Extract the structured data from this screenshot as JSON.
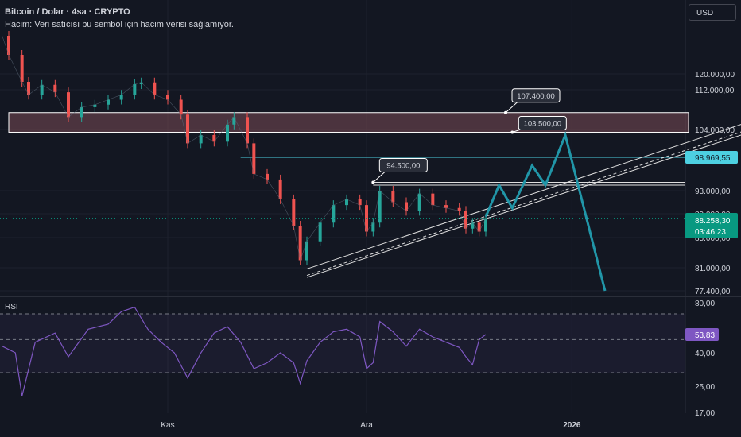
{
  "header": {
    "title": "Bitcoin / Dolar · 4sa · CRYPTO",
    "subtitle": "Hacim: Veri satıcısı bu sembol için hacim verisi sağlamıyor."
  },
  "currency_button": "USD",
  "rsi_pane_label": "RSI",
  "x_labels": [
    {
      "text": "Kas",
      "date": "2025-11-01",
      "bold": false
    },
    {
      "text": "Ara",
      "date": "2025-12-01",
      "bold": false
    },
    {
      "text": "2026",
      "date": "2026-01-01",
      "bold": true
    }
  ],
  "price_ticks": [
    "120.000,00",
    "112.000,00",
    "104.000,00",
    "93.000,00",
    "89.000,00",
    "85.000,00",
    "81.000,00",
    "77.400,00"
  ],
  "price_tick_values": [
    120000,
    112000,
    104000,
    93000,
    89000,
    85000,
    81000,
    77400
  ],
  "rsi_ticks": [
    "80,00",
    "40,00",
    "25,00",
    "17,00"
  ],
  "rsi_tick_values": [
    80,
    40,
    25,
    17
  ],
  "badges": {
    "level": {
      "text": "98.969,55",
      "value": 98969.55
    },
    "current_price": "88.258,30",
    "countdown": "03:46:23",
    "rsi": {
      "text": "53,83",
      "value": 53.83
    }
  },
  "callouts": [
    {
      "text": "107.400,00",
      "value": 107400,
      "date": "2025-12-22"
    },
    {
      "text": "103.500,00",
      "value": 103500,
      "date": "2025-12-23"
    },
    {
      "text": "94.500,00",
      "value": 94500,
      "date": "2025-12-02"
    }
  ],
  "colors": {
    "background": "#131722",
    "text": "#d1d4dc",
    "grid": "#1e222d",
    "candle_up": "#26a69a",
    "candle_down": "#ef5350",
    "rsi_line": "#7e57c2",
    "projection": "#2196a8",
    "level_badge": "#4dd0e1",
    "price_badge": "#089981",
    "rsi_badge": "#7e57c2",
    "zone_fill": "#7a4a55"
  },
  "chart_data": {
    "type": "line",
    "title": "Bitcoin / Dolar · 4sa · CRYPTO",
    "xlabel": "",
    "ylabel": "",
    "x_range": [
      "2025-10-07",
      "2026-01-31"
    ],
    "ylim": [
      77400,
      124000
    ],
    "grid": true,
    "series": [
      {
        "name": "",
        "values": [
          [
            "2025-10-07",
            124000
          ],
          [
            "2025-10-08",
            122000
          ],
          [
            "2025-10-10",
            116000
          ],
          [
            "2025-10-11",
            111000
          ],
          [
            "2025-10-13",
            114500
          ],
          [
            "2025-10-15",
            111500
          ],
          [
            "2025-10-17",
            106500
          ],
          [
            "2025-10-19",
            108500
          ],
          [
            "2025-10-21",
            109000
          ],
          [
            "2025-10-23",
            110000
          ],
          [
            "2025-10-25",
            111000
          ],
          [
            "2025-10-27",
            114800
          ],
          [
            "2025-10-28",
            115700
          ],
          [
            "2025-10-30",
            111000
          ],
          [
            "2025-11-01",
            110000
          ],
          [
            "2025-11-03",
            107000
          ],
          [
            "2025-11-04",
            101500
          ],
          [
            "2025-11-06",
            103000
          ],
          [
            "2025-11-08",
            101800
          ],
          [
            "2025-11-10",
            105000
          ],
          [
            "2025-11-11",
            106500
          ],
          [
            "2025-11-13",
            101500
          ],
          [
            "2025-11-14",
            96000
          ],
          [
            "2025-11-16",
            95000
          ],
          [
            "2025-11-18",
            91500
          ],
          [
            "2025-11-20",
            87000
          ],
          [
            "2025-11-21",
            82000
          ],
          [
            "2025-11-22",
            84500
          ],
          [
            "2025-11-24",
            87500
          ],
          [
            "2025-11-26",
            90500
          ],
          [
            "2025-11-28",
            91500
          ],
          [
            "2025-11-30",
            90500
          ],
          [
            "2025-12-01",
            86000
          ],
          [
            "2025-12-02",
            87500
          ],
          [
            "2025-12-03",
            93000
          ],
          [
            "2025-12-05",
            91000
          ],
          [
            "2025-12-07",
            89500
          ],
          [
            "2025-12-09",
            92500
          ],
          [
            "2025-12-11",
            90500
          ],
          [
            "2025-12-13",
            90000
          ],
          [
            "2025-12-15",
            89500
          ],
          [
            "2025-12-16",
            86500
          ],
          [
            "2025-12-17",
            87500
          ],
          [
            "2025-12-18",
            86000
          ],
          [
            "2025-12-19",
            88258.3
          ]
        ]
      }
    ],
    "horizontal_levels": [
      {
        "value": 98969.55,
        "from": "2025-11-12"
      },
      {
        "value": 94500,
        "from": "2025-12-02",
        "to": "2026-01-31"
      },
      {
        "value": 94000,
        "from": "2025-12-02",
        "to": "2026-01-31"
      }
    ],
    "zone": {
      "from_value": 103500,
      "to_value": 107400,
      "from_date": "2025-10-08",
      "to_date": "2026-01-31"
    },
    "channel": {
      "lower": [
        [
          "2025-11-22",
          79500
        ],
        [
          "2026-01-31",
          99000
        ]
      ],
      "upper": [
        [
          "2025-11-22",
          80200
        ],
        [
          "2026-01-31",
          99800
        ]
      ]
    },
    "projection": [
      [
        "2025-12-19",
        88500
      ],
      [
        "2025-12-21",
        94000
      ],
      [
        "2025-12-23",
        90000
      ],
      [
        "2025-12-26",
        97500
      ],
      [
        "2025-12-28",
        94000
      ],
      [
        "2025-12-31",
        103000
      ],
      [
        "2026-01-06",
        77400
      ]
    ],
    "rsi": {
      "ylim": [
        15,
        80
      ],
      "levels": [
        70,
        50,
        30
      ],
      "values": [
        [
          "2025-10-07",
          45
        ],
        [
          "2025-10-09",
          40
        ],
        [
          "2025-10-10",
          22
        ],
        [
          "2025-10-12",
          48
        ],
        [
          "2025-10-15",
          55
        ],
        [
          "2025-10-17",
          38
        ],
        [
          "2025-10-20",
          58
        ],
        [
          "2025-10-23",
          62
        ],
        [
          "2025-10-25",
          72
        ],
        [
          "2025-10-27",
          76
        ],
        [
          "2025-10-29",
          58
        ],
        [
          "2025-10-31",
          48
        ],
        [
          "2025-11-02",
          40
        ],
        [
          "2025-11-04",
          28
        ],
        [
          "2025-11-06",
          40
        ],
        [
          "2025-11-08",
          55
        ],
        [
          "2025-11-10",
          60
        ],
        [
          "2025-11-12",
          48
        ],
        [
          "2025-11-14",
          32
        ],
        [
          "2025-11-16",
          35
        ],
        [
          "2025-11-18",
          40
        ],
        [
          "2025-11-20",
          35
        ],
        [
          "2025-11-21",
          26
        ],
        [
          "2025-11-22",
          36
        ],
        [
          "2025-11-24",
          48
        ],
        [
          "2025-11-26",
          56
        ],
        [
          "2025-11-28",
          58
        ],
        [
          "2025-11-30",
          52
        ],
        [
          "2025-12-01",
          32
        ],
        [
          "2025-12-02",
          35
        ],
        [
          "2025-12-03",
          64
        ],
        [
          "2025-12-05",
          56
        ],
        [
          "2025-12-07",
          45
        ],
        [
          "2025-12-09",
          58
        ],
        [
          "2025-12-11",
          52
        ],
        [
          "2025-12-13",
          48
        ],
        [
          "2025-12-15",
          44
        ],
        [
          "2025-12-16",
          38
        ],
        [
          "2025-12-17",
          34
        ],
        [
          "2025-12-18",
          50
        ],
        [
          "2025-12-19",
          53.83
        ]
      ]
    }
  }
}
